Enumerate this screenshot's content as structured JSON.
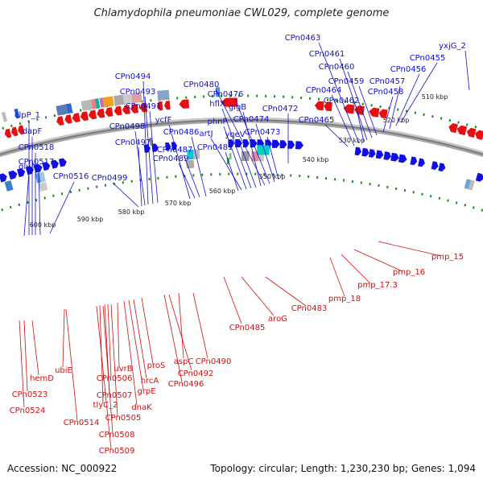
{
  "title": "Chlamydophila pneumoniae CWL029, complete genome",
  "footer": {
    "accession": "Accession: NC_000922",
    "summary": "Topology: circular; Length: 1,230,230 bp; Genes: 1,094"
  },
  "colors": {
    "forward": "#1010e6",
    "reverse": "#e61010",
    "backbone": "#808080",
    "tick": "#1a8c1a",
    "label_forward": "#1010d0",
    "label_reverse": "#d01010"
  },
  "scale_labels": [
    "510 kbp",
    "520 kbp",
    "530 kbp",
    "540 kbp",
    "550 kbp",
    "560 kbp",
    "570 kbp",
    "580 kbp",
    "590 kbp",
    "600 kbp"
  ],
  "forward_labels": [
    "yxjG_2",
    "CPn0455",
    "CPn0456",
    "CPn0457",
    "CPn0458",
    "CPn0459",
    "CPn0460",
    "CPn0461",
    "CPn0462",
    "CPn0463",
    "CPn0464",
    "CPn0465",
    "CPn0472",
    "CPn0473",
    "CPn0474",
    "CPn0476",
    "CPn0480",
    "glgB",
    "yqeV",
    "hflX",
    "phnP",
    "artJ",
    "CPn0481",
    "CPn0486",
    "CPn0487",
    "CPn0489",
    "ycfF",
    "CPn0491",
    "CPn0493",
    "CPn0494",
    "CPn0498",
    "CPn0497",
    "CPn0499",
    "CPn0516",
    "CPn0517",
    "CPn0518",
    "dapF",
    "clpP_1",
    "glyA"
  ],
  "reverse_labels": [
    "pmp_15",
    "pmp_16",
    "pmp_17.3",
    "pmp_18",
    "CPn0483",
    "aroG",
    "CPn0485",
    "CPn0490",
    "aspC",
    "CPn0492",
    "CPn0496",
    "proS",
    "hrcA",
    "grpE",
    "dnaK",
    "uvrB",
    "CPn0506",
    "CPn0507",
    "tlyC_2",
    "CPn0505",
    "CPn0508",
    "CPn0509",
    "CPn0514",
    "ubiE",
    "hemD",
    "CPn0523",
    "CPn0524"
  ]
}
